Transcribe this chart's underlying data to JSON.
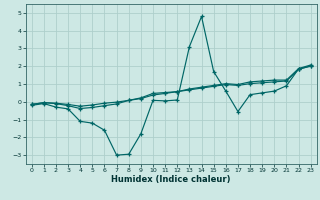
{
  "title": "",
  "xlabel": "Humidex (Indice chaleur)",
  "ylabel": "",
  "background_color": "#cde8e4",
  "grid_color": "#aecfcc",
  "line_color": "#006666",
  "xlim": [
    -0.5,
    23.5
  ],
  "ylim": [
    -3.5,
    5.5
  ],
  "xticks": [
    0,
    1,
    2,
    3,
    4,
    5,
    6,
    7,
    8,
    9,
    10,
    11,
    12,
    13,
    14,
    15,
    16,
    17,
    18,
    19,
    20,
    21,
    22,
    23
  ],
  "yticks": [
    -3,
    -2,
    -1,
    0,
    1,
    2,
    3,
    4,
    5
  ],
  "line1_x": [
    0,
    1,
    2,
    3,
    4,
    5,
    6,
    7,
    8,
    9,
    10,
    11,
    12,
    13,
    14,
    15,
    16,
    17,
    18,
    19,
    20,
    21,
    22,
    23
  ],
  "line1_y": [
    -0.2,
    -0.1,
    -0.3,
    -0.4,
    -1.1,
    -1.2,
    -1.6,
    -3.0,
    -2.95,
    -1.8,
    0.08,
    0.05,
    0.1,
    3.1,
    4.8,
    1.7,
    0.6,
    -0.55,
    0.4,
    0.5,
    0.6,
    0.9,
    1.85,
    2.0
  ],
  "line2_x": [
    0,
    1,
    2,
    3,
    4,
    5,
    6,
    7,
    8,
    9,
    10,
    11,
    12,
    13,
    14,
    15,
    16,
    17,
    18,
    19,
    20,
    21,
    22,
    23
  ],
  "line2_y": [
    -0.15,
    -0.05,
    -0.08,
    -0.15,
    -0.25,
    -0.18,
    -0.08,
    -0.02,
    0.08,
    0.18,
    0.38,
    0.47,
    0.57,
    0.67,
    0.77,
    0.87,
    0.97,
    0.92,
    1.02,
    1.07,
    1.12,
    1.17,
    1.82,
    2.02
  ],
  "line3_x": [
    0,
    1,
    2,
    3,
    4,
    5,
    6,
    7,
    8,
    9,
    10,
    11,
    12,
    13,
    14,
    15,
    16,
    17,
    18,
    19,
    20,
    21,
    22,
    23
  ],
  "line3_y": [
    -0.15,
    -0.05,
    -0.1,
    -0.22,
    -0.38,
    -0.32,
    -0.22,
    -0.12,
    0.08,
    0.22,
    0.47,
    0.52,
    0.57,
    0.72,
    0.82,
    0.92,
    1.02,
    0.97,
    1.12,
    1.17,
    1.22,
    1.22,
    1.87,
    2.07
  ],
  "tick_fontsize": 4.5,
  "xlabel_fontsize": 6.0,
  "tick_color": "#003333",
  "spine_color": "#336666"
}
